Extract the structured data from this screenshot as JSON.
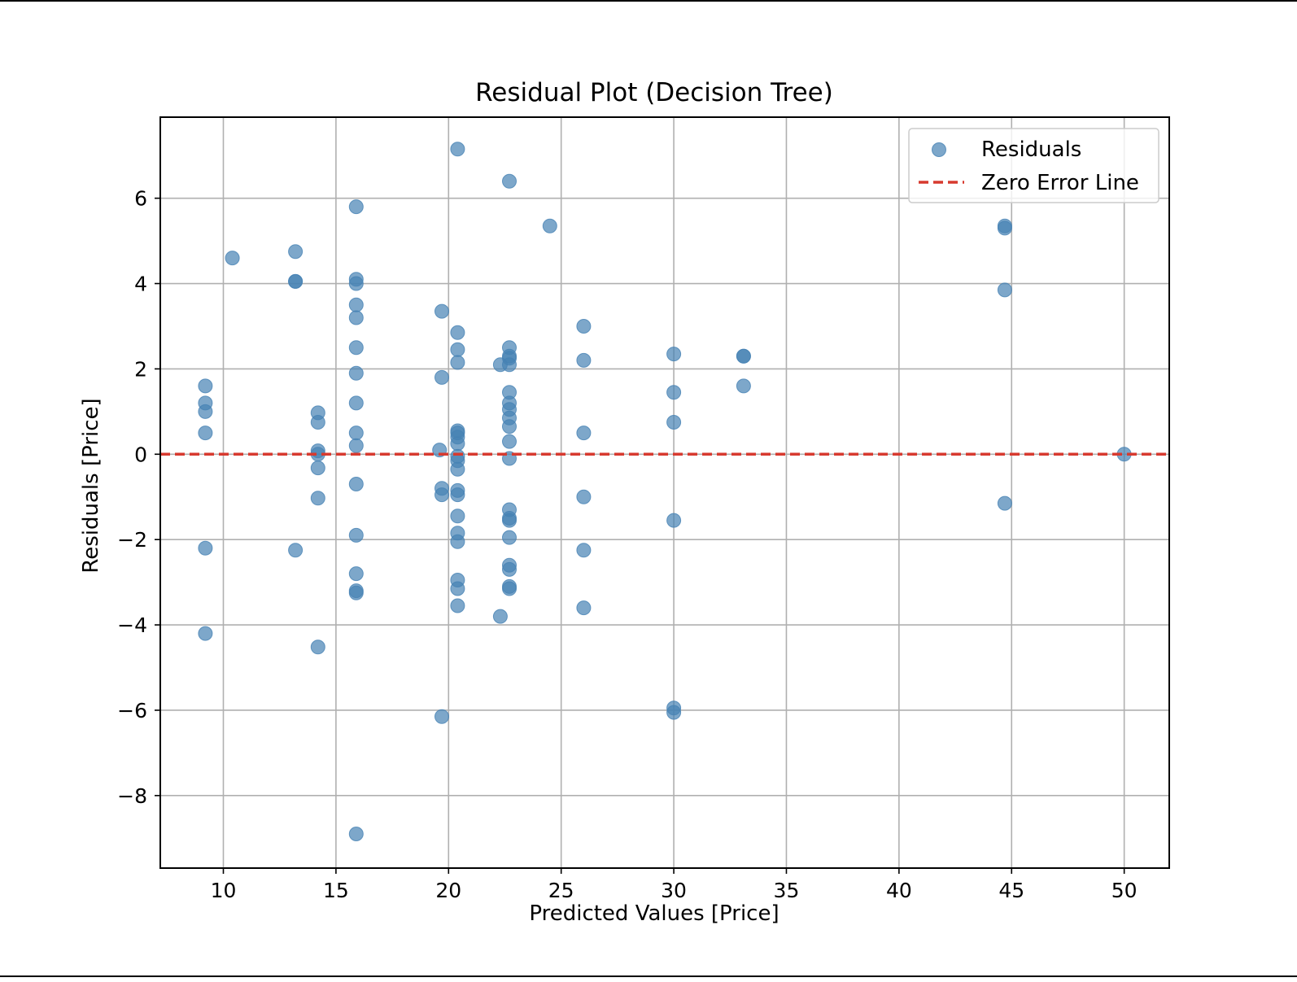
{
  "chart_data": {
    "type": "scatter",
    "title": "Residual Plot (Decision Tree)",
    "xlabel": "Predicted Values [Price]",
    "ylabel": "Residuals [Price]",
    "xlim": [
      7.2,
      52.0
    ],
    "ylim": [
      -9.7,
      7.9
    ],
    "xticks": [
      10,
      15,
      20,
      25,
      30,
      35,
      40,
      45,
      50
    ],
    "yticks": [
      -8,
      -6,
      -4,
      -2,
      0,
      2,
      4,
      6
    ],
    "xtick_labels": [
      "10",
      "15",
      "20",
      "25",
      "30",
      "35",
      "40",
      "45",
      "50"
    ],
    "ytick_labels": [
      "−8",
      "−6",
      "−4",
      "−2",
      "0",
      "2",
      "4",
      "6"
    ],
    "grid": true,
    "legend_position": "top-right",
    "series": [
      {
        "name": "Residuals",
        "kind": "scatter",
        "color": "#4682b4",
        "alpha": 0.7,
        "points": [
          [
            9.2,
            1.6
          ],
          [
            9.2,
            1.2
          ],
          [
            9.2,
            1.0
          ],
          [
            9.2,
            0.5
          ],
          [
            9.2,
            -2.2
          ],
          [
            9.2,
            -4.2
          ],
          [
            10.4,
            4.6
          ],
          [
            13.2,
            4.75
          ],
          [
            13.2,
            4.05
          ],
          [
            13.2,
            4.05
          ],
          [
            13.2,
            -2.25
          ],
          [
            14.2,
            0.97
          ],
          [
            14.2,
            0.75
          ],
          [
            14.2,
            0.08
          ],
          [
            14.2,
            0.0
          ],
          [
            14.2,
            -0.32
          ],
          [
            14.2,
            -1.03
          ],
          [
            14.2,
            -4.52
          ],
          [
            15.9,
            5.8
          ],
          [
            15.9,
            4.1
          ],
          [
            15.9,
            4.0
          ],
          [
            15.9,
            3.5
          ],
          [
            15.9,
            3.2
          ],
          [
            15.9,
            2.5
          ],
          [
            15.9,
            1.9
          ],
          [
            15.9,
            1.2
          ],
          [
            15.9,
            0.5
          ],
          [
            15.9,
            0.2
          ],
          [
            15.9,
            -0.7
          ],
          [
            15.9,
            -1.9
          ],
          [
            15.9,
            -2.8
          ],
          [
            15.9,
            -3.2
          ],
          [
            15.9,
            -3.25
          ],
          [
            15.9,
            -8.9
          ],
          [
            19.6,
            0.1
          ],
          [
            19.7,
            3.35
          ],
          [
            19.7,
            1.8
          ],
          [
            19.7,
            -0.8
          ],
          [
            19.7,
            -0.95
          ],
          [
            19.7,
            -6.15
          ],
          [
            20.4,
            7.15
          ],
          [
            20.4,
            2.85
          ],
          [
            20.4,
            2.45
          ],
          [
            20.4,
            2.15
          ],
          [
            20.4,
            0.55
          ],
          [
            20.4,
            0.5
          ],
          [
            20.4,
            0.4
          ],
          [
            20.4,
            0.25
          ],
          [
            20.4,
            -0.05
          ],
          [
            20.4,
            -0.15
          ],
          [
            20.4,
            -0.35
          ],
          [
            20.4,
            -0.85
          ],
          [
            20.4,
            -0.95
          ],
          [
            20.4,
            -1.45
          ],
          [
            20.4,
            -1.85
          ],
          [
            20.4,
            -2.05
          ],
          [
            20.4,
            -2.95
          ],
          [
            20.4,
            -3.15
          ],
          [
            20.4,
            -3.55
          ],
          [
            22.3,
            2.1
          ],
          [
            22.3,
            -3.8
          ],
          [
            22.7,
            6.4
          ],
          [
            22.7,
            2.5
          ],
          [
            22.7,
            2.3
          ],
          [
            22.7,
            2.25
          ],
          [
            22.7,
            2.1
          ],
          [
            22.7,
            1.45
          ],
          [
            22.7,
            1.2
          ],
          [
            22.7,
            1.05
          ],
          [
            22.7,
            0.85
          ],
          [
            22.7,
            0.65
          ],
          [
            22.7,
            0.3
          ],
          [
            22.7,
            -0.1
          ],
          [
            22.7,
            -1.3
          ],
          [
            22.7,
            -1.5
          ],
          [
            22.7,
            -1.55
          ],
          [
            22.7,
            -1.95
          ],
          [
            22.7,
            -2.6
          ],
          [
            22.7,
            -2.7
          ],
          [
            22.7,
            -3.1
          ],
          [
            22.7,
            -3.15
          ],
          [
            24.5,
            5.35
          ],
          [
            26.0,
            3.0
          ],
          [
            26.0,
            2.2
          ],
          [
            26.0,
            0.5
          ],
          [
            26.0,
            -1.0
          ],
          [
            26.0,
            -2.25
          ],
          [
            26.0,
            -3.6
          ],
          [
            30.0,
            2.35
          ],
          [
            30.0,
            1.45
          ],
          [
            30.0,
            0.75
          ],
          [
            30.0,
            -1.55
          ],
          [
            30.0,
            -5.95
          ],
          [
            30.0,
            -6.05
          ],
          [
            33.1,
            2.3
          ],
          [
            33.1,
            2.3
          ],
          [
            33.1,
            1.6
          ],
          [
            44.7,
            5.35
          ],
          [
            44.7,
            5.3
          ],
          [
            44.7,
            3.85
          ],
          [
            44.7,
            -1.15
          ],
          [
            50.0,
            0.0
          ]
        ]
      },
      {
        "name": "Zero Error Line",
        "kind": "line",
        "style": "dashed",
        "color": "#d73a2f",
        "y": 0
      }
    ]
  }
}
